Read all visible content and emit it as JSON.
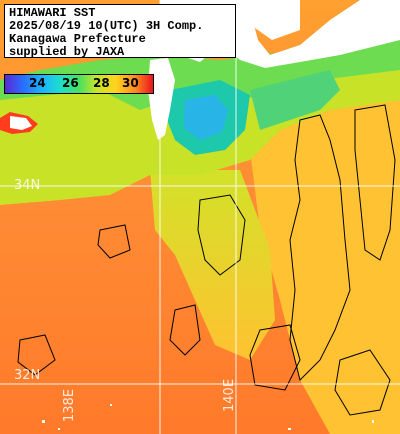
{
  "header": {
    "line1": "HIMAWARI SST",
    "line2": "2025/08/19 10(UTC) 3H Comp.",
    "line3": "Kanagawa Prefecture",
    "line4": "supplied by JAXA"
  },
  "legend": {
    "ticks": [
      "24",
      "26",
      "28",
      "30"
    ],
    "unit_colors": {
      "cold": "#5a2ad0",
      "mid": "#48e060",
      "warm": "#ffd21e",
      "hot": "#e8141e"
    }
  },
  "graticule": {
    "lat_labels": [
      "34N",
      "32N"
    ],
    "lon_labels": [
      "138E",
      "140E"
    ]
  },
  "colors": {
    "land": "#ffffff",
    "cloud": "#ffffff",
    "sea_warm": "#ff8c32",
    "sea_cool": "#ffc832",
    "sea_coast": "#48d060",
    "grid": "#ffffff"
  }
}
